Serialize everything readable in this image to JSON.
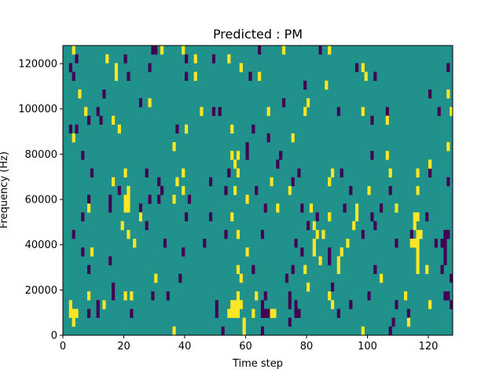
{
  "chart_data": {
    "type": "heatmap",
    "title": "Predicted : PM",
    "xlabel": "Time step",
    "ylabel": "Frequency (Hz)",
    "xlim": [
      0,
      128
    ],
    "ylim": [
      0,
      128000
    ],
    "x_ticks": [
      0,
      20,
      40,
      60,
      80,
      100,
      120
    ],
    "y_ticks": [
      0,
      20000,
      40000,
      60000,
      80000,
      100000,
      120000
    ],
    "n_time_steps": 128,
    "n_freq_bins": 33,
    "grid": false,
    "value_levels": {
      "low": 0,
      "mid": 0.5,
      "high": 1
    },
    "colors": {
      "low": "#440154",
      "mid": "#21918c",
      "high": "#fde725"
    },
    "background_level": "mid",
    "cells_note": "[time_step, frequency_bin] pairs; bin 0 is lowest frequency",
    "low_cells": [
      [
        29,
        32
      ],
      [
        30,
        32
      ],
      [
        4,
        31
      ],
      [
        20,
        31
      ],
      [
        2,
        30
      ],
      [
        28,
        30
      ],
      [
        3,
        29
      ],
      [
        21,
        29
      ],
      [
        13,
        27
      ],
      [
        25,
        26
      ],
      [
        11,
        25
      ],
      [
        8,
        24
      ],
      [
        12,
        24
      ],
      [
        2,
        23
      ],
      [
        4,
        23
      ],
      [
        6,
        20
      ],
      [
        9,
        18
      ],
      [
        27,
        18
      ],
      [
        31,
        17
      ],
      [
        18,
        16
      ],
      [
        8,
        15
      ],
      [
        15,
        15
      ],
      [
        15,
        14
      ],
      [
        28,
        15
      ],
      [
        31,
        15
      ],
      [
        25,
        14
      ],
      [
        6,
        13
      ],
      [
        27,
        12
      ],
      [
        3,
        11
      ],
      [
        6,
        9
      ],
      [
        15,
        8
      ],
      [
        8,
        7
      ],
      [
        16,
        5
      ],
      [
        16,
        4
      ],
      [
        29,
        4
      ],
      [
        11,
        3
      ],
      [
        11,
        2
      ],
      [
        8,
        2
      ],
      [
        22,
        2
      ],
      [
        40,
        31
      ],
      [
        49,
        31
      ],
      [
        40,
        29
      ],
      [
        61,
        29
      ],
      [
        49,
        25
      ],
      [
        51,
        25
      ],
      [
        37,
        23
      ],
      [
        62,
        23
      ],
      [
        60,
        21
      ],
      [
        60,
        20
      ],
      [
        54,
        18
      ],
      [
        48,
        17
      ],
      [
        32,
        16
      ],
      [
        53,
        16
      ],
      [
        63,
        16
      ],
      [
        41,
        15
      ],
      [
        40,
        13
      ],
      [
        48,
        13
      ],
      [
        53,
        11
      ],
      [
        33,
        10
      ],
      [
        46,
        10
      ],
      [
        39,
        9
      ],
      [
        62,
        7
      ],
      [
        38,
        6
      ],
      [
        34,
        4
      ],
      [
        50,
        3
      ],
      [
        50,
        2
      ],
      [
        52,
        0
      ],
      [
        64,
        32
      ],
      [
        84,
        32
      ],
      [
        79,
        28
      ],
      [
        72,
        26
      ],
      [
        90,
        25
      ],
      [
        67,
        22
      ],
      [
        71,
        20
      ],
      [
        70,
        19
      ],
      [
        77,
        18
      ],
      [
        91,
        18
      ],
      [
        75,
        17
      ],
      [
        94,
        16
      ],
      [
        66,
        14
      ],
      [
        78,
        14
      ],
      [
        92,
        14
      ],
      [
        83,
        13
      ],
      [
        80,
        12
      ],
      [
        65,
        11
      ],
      [
        76,
        10
      ],
      [
        78,
        9
      ],
      [
        87,
        9
      ],
      [
        87,
        8
      ],
      [
        75,
        7
      ],
      [
        73,
        6
      ],
      [
        88,
        5
      ],
      [
        66,
        4
      ],
      [
        74,
        4
      ],
      [
        74,
        3
      ],
      [
        65,
        3
      ],
      [
        65,
        2
      ],
      [
        76,
        3
      ],
      [
        76,
        2
      ],
      [
        94,
        3
      ],
      [
        66,
        2
      ],
      [
        67,
        2
      ],
      [
        77,
        2
      ],
      [
        90,
        2
      ],
      [
        74,
        1
      ],
      [
        65,
        0
      ],
      [
        96,
        30
      ],
      [
        126,
        30
      ],
      [
        102,
        29
      ],
      [
        120,
        27
      ],
      [
        106,
        25
      ],
      [
        123,
        25
      ],
      [
        101,
        24
      ],
      [
        101,
        20
      ],
      [
        120,
        18
      ],
      [
        126,
        17
      ],
      [
        107,
        16
      ],
      [
        104,
        14
      ],
      [
        101,
        13
      ],
      [
        119,
        13
      ],
      [
        102,
        12
      ],
      [
        98,
        11
      ],
      [
        114,
        11
      ],
      [
        125,
        11
      ],
      [
        126,
        11
      ],
      [
        109,
        10
      ],
      [
        122,
        10
      ],
      [
        124,
        10
      ],
      [
        125,
        10
      ],
      [
        125,
        9
      ],
      [
        125,
        8
      ],
      [
        102,
        7
      ],
      [
        124,
        7
      ],
      [
        127,
        6
      ],
      [
        100,
        4
      ],
      [
        125,
        4
      ],
      [
        126,
        4
      ],
      [
        109,
        3
      ],
      [
        127,
        3
      ],
      [
        113,
        2
      ],
      [
        108,
        1
      ],
      [
        107,
        0
      ]
    ],
    "high_cells": [
      [
        3,
        32
      ],
      [
        14,
        31
      ],
      [
        17,
        30
      ],
      [
        17,
        29
      ],
      [
        5,
        27
      ],
      [
        28,
        26
      ],
      [
        7,
        25
      ],
      [
        16,
        24
      ],
      [
        18,
        23
      ],
      [
        3,
        22
      ],
      [
        20,
        18
      ],
      [
        16,
        17
      ],
      [
        21,
        16
      ],
      [
        21,
        15
      ],
      [
        21,
        14
      ],
      [
        20,
        15
      ],
      [
        20,
        14
      ],
      [
        8,
        14
      ],
      [
        25,
        13
      ],
      [
        19,
        12
      ],
      [
        21,
        11
      ],
      [
        23,
        10
      ],
      [
        9,
        9
      ],
      [
        30,
        6
      ],
      [
        8,
        4
      ],
      [
        20,
        4
      ],
      [
        22,
        4
      ],
      [
        2,
        3
      ],
      [
        2,
        2
      ],
      [
        13,
        3
      ],
      [
        3,
        2
      ],
      [
        4,
        2
      ],
      [
        3,
        1
      ],
      [
        32,
        32
      ],
      [
        39,
        32
      ],
      [
        43,
        31
      ],
      [
        54,
        31
      ],
      [
        58,
        30
      ],
      [
        43,
        29
      ],
      [
        45,
        25
      ],
      [
        40,
        23
      ],
      [
        55,
        23
      ],
      [
        36,
        21
      ],
      [
        55,
        20
      ],
      [
        57,
        20
      ],
      [
        56,
        19
      ],
      [
        39,
        18
      ],
      [
        57,
        18
      ],
      [
        37,
        17
      ],
      [
        39,
        16
      ],
      [
        56,
        16
      ],
      [
        36,
        15
      ],
      [
        60,
        15
      ],
      [
        55,
        13
      ],
      [
        57,
        11
      ],
      [
        60,
        9
      ],
      [
        57,
        7
      ],
      [
        58,
        6
      ],
      [
        57,
        4
      ],
      [
        63,
        4
      ],
      [
        55,
        3
      ],
      [
        56,
        3
      ],
      [
        57,
        3
      ],
      [
        58,
        3
      ],
      [
        54,
        2
      ],
      [
        55,
        2
      ],
      [
        56,
        2
      ],
      [
        57,
        2
      ],
      [
        62,
        2
      ],
      [
        59,
        1
      ],
      [
        59,
        0
      ],
      [
        36,
        0
      ],
      [
        72,
        32
      ],
      [
        87,
        32
      ],
      [
        64,
        29
      ],
      [
        86,
        28
      ],
      [
        80,
        26
      ],
      [
        67,
        25
      ],
      [
        79,
        25
      ],
      [
        75,
        22
      ],
      [
        88,
        18
      ],
      [
        68,
        17
      ],
      [
        87,
        17
      ],
      [
        74,
        16
      ],
      [
        70,
        14
      ],
      [
        81,
        14
      ],
      [
        87,
        13
      ],
      [
        82,
        12
      ],
      [
        95,
        12
      ],
      [
        83,
        11
      ],
      [
        85,
        11
      ],
      [
        82,
        10
      ],
      [
        82,
        9
      ],
      [
        93,
        10
      ],
      [
        91,
        9
      ],
      [
        84,
        8
      ],
      [
        90,
        8
      ],
      [
        90,
        7
      ],
      [
        79,
        7
      ],
      [
        80,
        5
      ],
      [
        87,
        4
      ],
      [
        88,
        3
      ],
      [
        68,
        2
      ],
      [
        69,
        2
      ],
      [
        98,
        30
      ],
      [
        99,
        29
      ],
      [
        126,
        27
      ],
      [
        98,
        25
      ],
      [
        127,
        25
      ],
      [
        106,
        24
      ],
      [
        126,
        21
      ],
      [
        106,
        20
      ],
      [
        120,
        19
      ],
      [
        107,
        18
      ],
      [
        116,
        18
      ],
      [
        100,
        16
      ],
      [
        116,
        16
      ],
      [
        96,
        14
      ],
      [
        96,
        13
      ],
      [
        109,
        14
      ],
      [
        115,
        13
      ],
      [
        116,
        13
      ],
      [
        115,
        12
      ],
      [
        116,
        11
      ],
      [
        117,
        11
      ],
      [
        114,
        10
      ],
      [
        115,
        10
      ],
      [
        116,
        10
      ],
      [
        116,
        9
      ],
      [
        116,
        8
      ],
      [
        116,
        7
      ],
      [
        119,
        7
      ],
      [
        104,
        6
      ],
      [
        112,
        4
      ],
      [
        120,
        3
      ],
      [
        113,
        1
      ],
      [
        98,
        0
      ]
    ]
  }
}
